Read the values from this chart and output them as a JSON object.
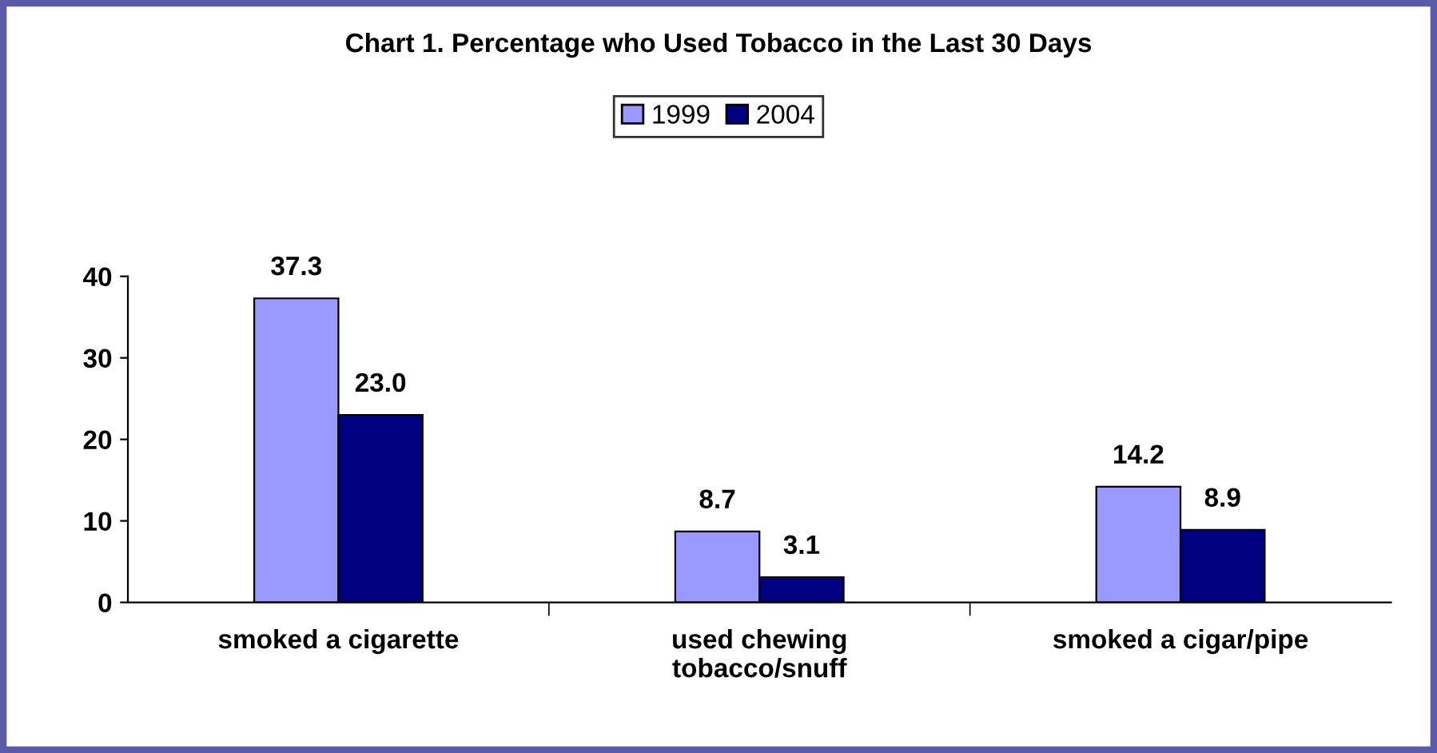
{
  "chart_data": {
    "type": "bar",
    "title": "Chart 1. Percentage who Used Tobacco in the Last 30 Days",
    "categories": [
      "smoked a cigarette",
      "used chewing\ntobacco/snuff",
      "smoked a cigar/pipe"
    ],
    "series": [
      {
        "name": "1999",
        "color": "#9999ff",
        "values": [
          37.3,
          8.7,
          14.2
        ],
        "value_labels": [
          "37.3",
          "8.7",
          "14.2"
        ]
      },
      {
        "name": "2004",
        "color": "#000080",
        "values": [
          23.0,
          3.1,
          8.9
        ],
        "value_labels": [
          "23.0",
          "3.1",
          "8.9"
        ]
      }
    ],
    "ylim": [
      0,
      40
    ],
    "yticks": [
      0,
      10,
      20,
      30,
      40
    ],
    "grid": false,
    "legend": "top"
  }
}
